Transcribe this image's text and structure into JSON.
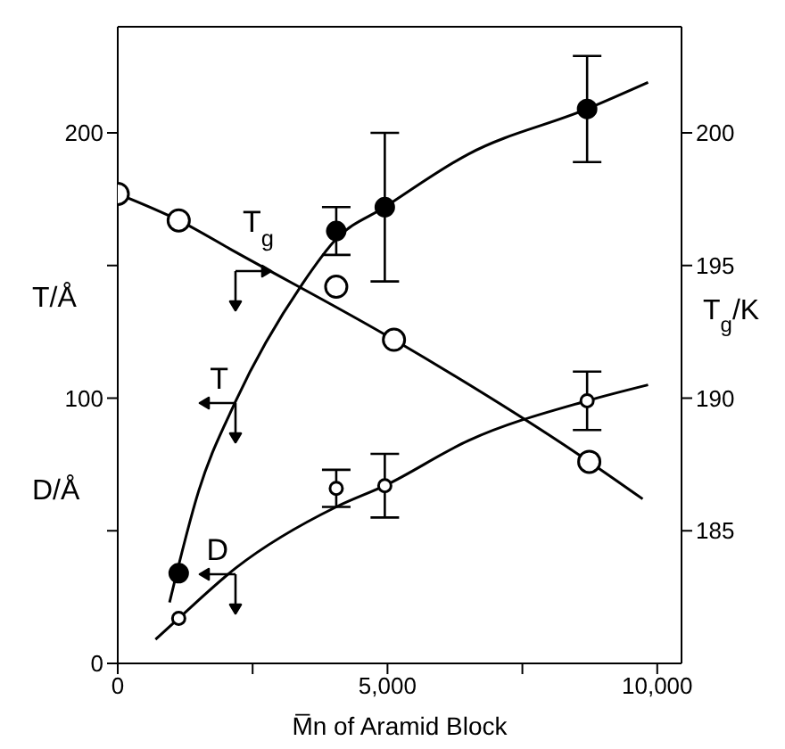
{
  "chart_data": {
    "type": "scatter",
    "xlabel": "M̅n of Aramid Block",
    "ylabel": "T/Å",
    "y2label": "T$_{g}$/K",
    "xlim": [
      0,
      10450
    ],
    "xticks": [
      {
        "value": 0,
        "label": "0"
      },
      {
        "value": 2500,
        "label": null
      },
      {
        "value": 5000,
        "label": "5,000"
      },
      {
        "value": 7500,
        "label": null
      },
      {
        "value": 10000,
        "label": "10,000"
      }
    ],
    "ylim": [
      0,
      240
    ],
    "yticks": [
      0,
      {
        "value": 50,
        "label": null
      },
      100,
      {
        "value": 150,
        "label": null
      },
      200
    ],
    "y2lim": [
      180,
      204
    ],
    "y2ticks": [
      185,
      190,
      195,
      200
    ],
    "marker": "circle",
    "series": [
      {
        "color": "#000000",
        "x": [
          0,
          1130,
          4050,
          5120,
          8740
        ],
        "values": [
          177,
          167,
          142,
          122,
          76
        ]
      },
      {
        "type": "line",
        "marker": "none",
        "color": "#000000",
        "x": [
          0,
          1130,
          2190,
          5120,
          8740,
          9730
        ],
        "values": [
          177,
          167,
          155,
          122,
          76,
          62
        ]
      },
      {
        "axis": "y2",
        "color": "#000000",
        "x": [
          1130,
          4050,
          4950,
          8700
        ],
        "values": [
          183.4,
          196.3,
          197.2,
          200.9
        ],
        "errors": [
          null,
          0.9,
          2.8,
          2.0
        ]
      },
      {
        "type": "line",
        "axis": "y2",
        "marker": "none",
        "color": "#000000",
        "x": [
          960,
          1500,
          2190,
          3420,
          4050,
          4950,
          6500,
          8700,
          9830
        ],
        "values": [
          182.3,
          186.5,
          189.9,
          194.3,
          196.0,
          197.2,
          199.2,
          200.9,
          201.9
        ]
      },
      {
        "color": "#000000",
        "x": [
          1130,
          4050,
          4950,
          8700
        ],
        "values": [
          17,
          66,
          67,
          99
        ],
        "errors": [
          null,
          7,
          12,
          11
        ]
      },
      {
        "type": "line",
        "marker": "none",
        "color": "#000000",
        "x": [
          700,
          1130,
          2190,
          4050,
          4950,
          6500,
          8700,
          9830
        ],
        "values": [
          9,
          17,
          36,
          59,
          67,
          84,
          99,
          105
        ]
      }
    ],
    "annotations": [
      "T$_{g}$",
      "T",
      "D",
      "D/Å"
    ]
  }
}
